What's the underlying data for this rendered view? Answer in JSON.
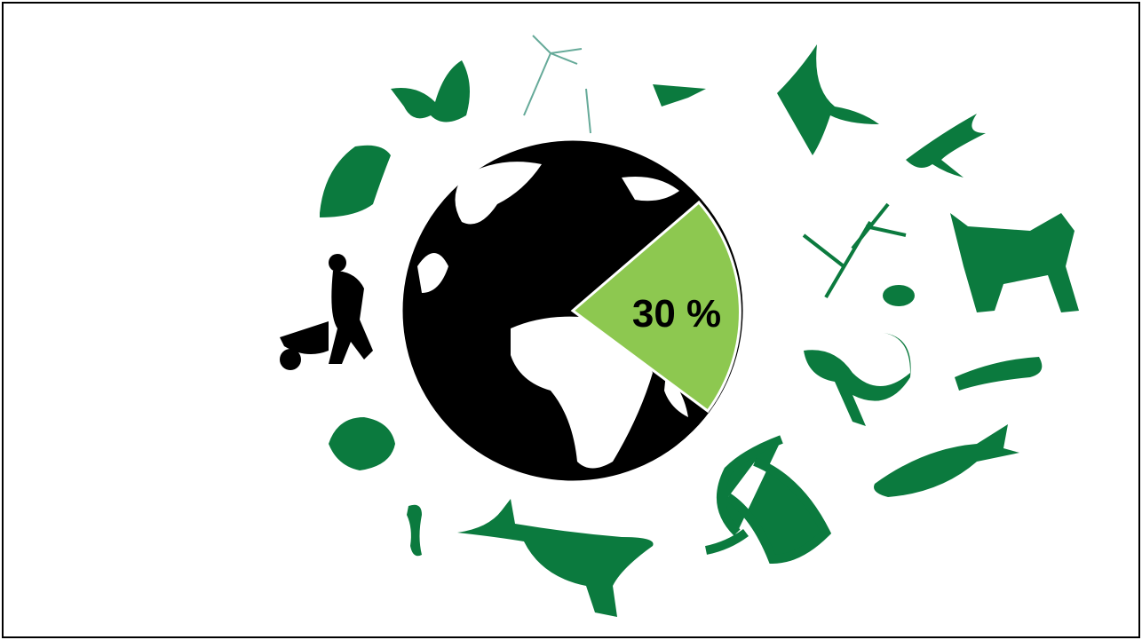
{
  "label": "30 %"
}
